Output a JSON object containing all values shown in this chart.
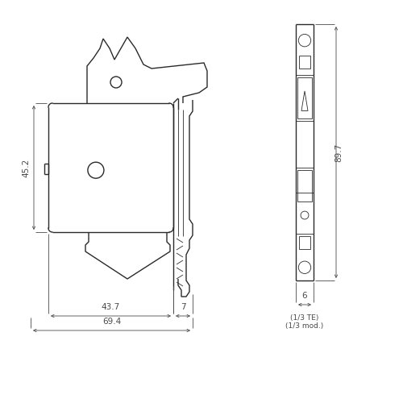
{
  "bg_color": "#ffffff",
  "line_color": "#2a2a2a",
  "dim_color": "#4a4a4a",
  "lw_main": 1.0,
  "lw_thin": 0.6,
  "lw_dim": 0.6,
  "fs_dim": 7.5,
  "fs_small": 6.5,
  "label_452": "45.2",
  "label_437": "43.7",
  "label_7": "7",
  "label_694": "69.4",
  "label_897": "89.7",
  "label_6": "6",
  "label_13te": "(1/3 TE)",
  "label_13mod": "(1/3 mod.)"
}
